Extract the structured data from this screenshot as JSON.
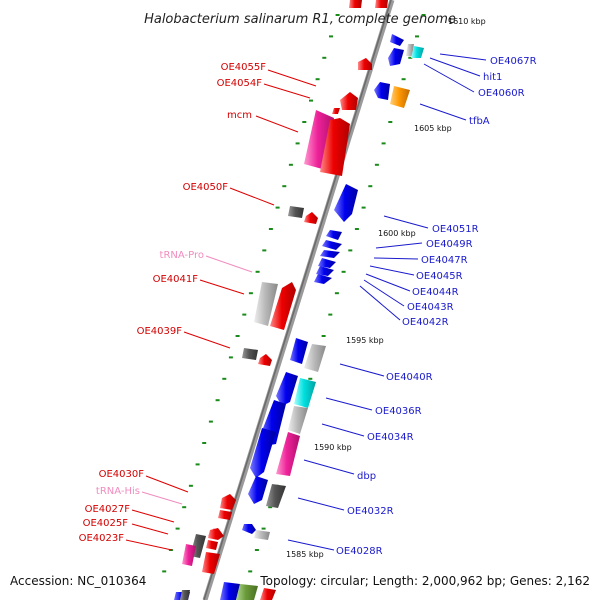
{
  "title": "Halobacterium salinarum R1, complete genome",
  "footer": {
    "accession": "Accession: NC_010364",
    "summary": "Topology: circular; Length: 2,000,962 bp; Genes: 2,162"
  },
  "colors": {
    "forward_gene": "#ee0000",
    "reverse_gene": "#0000ee",
    "pink_gene": "#ee2299",
    "gray_gene": "#aaaaaa",
    "dark_gene": "#555555",
    "cyan_gene": "#00e0e0",
    "orange_gene": "#ff9900",
    "trna_label": "#f08cbf",
    "tick_mark": "#1a8a1a",
    "backbone": "#8a8a8a"
  },
  "kbp_labels": [
    "1610 kbp",
    "1605 kbp",
    "1600 kbp",
    "1595 kbp",
    "1590 kbp",
    "1585 kbp"
  ],
  "left_labels": [
    {
      "text": "OE4055F",
      "type": "forward"
    },
    {
      "text": "OE4054F",
      "type": "forward"
    },
    {
      "text": "mcm",
      "type": "forward"
    },
    {
      "text": "OE4050F",
      "type": "forward"
    },
    {
      "text": "tRNA-Pro",
      "type": "trna"
    },
    {
      "text": "OE4041F",
      "type": "forward"
    },
    {
      "text": "OE4039F",
      "type": "forward"
    },
    {
      "text": "OE4030F",
      "type": "forward"
    },
    {
      "text": "tRNA-His",
      "type": "trna"
    },
    {
      "text": "OE4027F",
      "type": "forward"
    },
    {
      "text": "OE4025F",
      "type": "forward"
    },
    {
      "text": "OE4023F",
      "type": "forward"
    }
  ],
  "right_labels": [
    {
      "text": "OE4067R",
      "type": "reverse"
    },
    {
      "text": "hit1",
      "type": "reverse"
    },
    {
      "text": "OE4060R",
      "type": "reverse"
    },
    {
      "text": "tfbA",
      "type": "reverse"
    },
    {
      "text": "OE4051R",
      "type": "reverse"
    },
    {
      "text": "OE4049R",
      "type": "reverse"
    },
    {
      "text": "OE4047R",
      "type": "reverse"
    },
    {
      "text": "OE4045R",
      "type": "reverse"
    },
    {
      "text": "OE4044R",
      "type": "reverse"
    },
    {
      "text": "OE4043R",
      "type": "reverse"
    },
    {
      "text": "OE4042R",
      "type": "reverse"
    },
    {
      "text": "OE4040R",
      "type": "reverse"
    },
    {
      "text": "OE4036R",
      "type": "reverse"
    },
    {
      "text": "OE4034R",
      "type": "reverse"
    },
    {
      "text": "dbp",
      "type": "reverse"
    },
    {
      "text": "OE4032R",
      "type": "reverse"
    },
    {
      "text": "OE4028R",
      "type": "reverse"
    }
  ]
}
